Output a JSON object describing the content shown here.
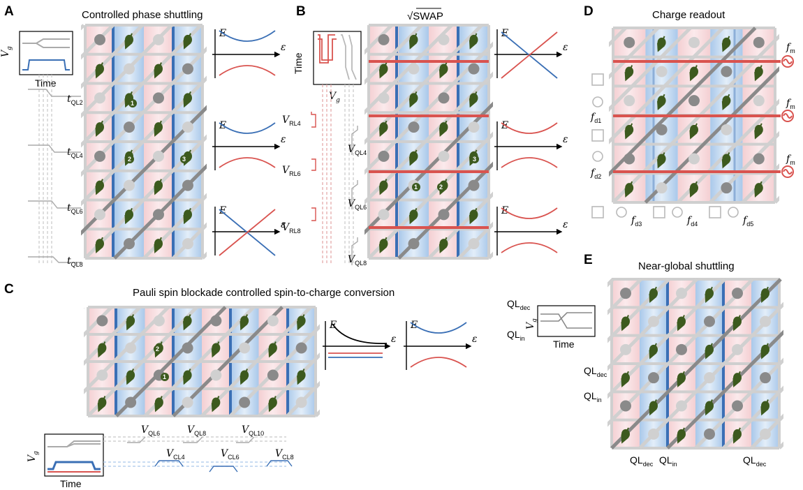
{
  "panels": {
    "A": {
      "letter": "A",
      "title": "Controlled phase shuttling",
      "inset_y": "V",
      "inset_y_sub": "g",
      "inset_x": "Time",
      "gate_labels": [
        {
          "main": "t",
          "sub": "QL2"
        },
        {
          "main": "t",
          "sub": "QL4"
        },
        {
          "main": "t",
          "sub": "QL6"
        },
        {
          "main": "t",
          "sub": "QL8"
        }
      ],
      "markers": [
        "1",
        "2",
        "3"
      ]
    },
    "B": {
      "letter": "B",
      "title": "√SWAP",
      "inset_y": "Time",
      "inset_x": "V",
      "inset_x_sub": "g",
      "red_gates": [
        {
          "main": "V",
          "sub": "RL4"
        },
        {
          "main": "V",
          "sub": "RL6"
        },
        {
          "main": "V",
          "sub": "RL8"
        }
      ],
      "grey_gates": [
        {
          "main": "V",
          "sub": "QL4"
        },
        {
          "main": "V",
          "sub": "QL6"
        },
        {
          "main": "V",
          "sub": "QL8"
        }
      ],
      "markers": [
        "1",
        "2",
        "3"
      ]
    },
    "C": {
      "letter": "C",
      "title": "Pauli spin blockade controlled spin-to-charge conversion",
      "inset_y": "V",
      "inset_y_sub": "g",
      "inset_x": "Time",
      "ql_gates": [
        {
          "main": "V",
          "sub": "QL6"
        },
        {
          "main": "V",
          "sub": "QL8"
        },
        {
          "main": "V",
          "sub": "QL10"
        }
      ],
      "cl_gates": [
        {
          "main": "V",
          "sub": "CL4"
        },
        {
          "main": "V",
          "sub": "CL6"
        },
        {
          "main": "V",
          "sub": "CL8"
        }
      ],
      "markers": [
        "1",
        "2"
      ]
    },
    "D": {
      "letter": "D",
      "title": "Charge readout",
      "fm": {
        "main": "f",
        "sub": "m"
      },
      "fd_left": [
        {
          "main": "f",
          "sub": "d1"
        },
        {
          "main": "f",
          "sub": "d2"
        }
      ],
      "fd_bottom": [
        {
          "main": "f",
          "sub": "d3"
        },
        {
          "main": "f",
          "sub": "d4"
        },
        {
          "main": "f",
          "sub": "d5"
        }
      ]
    },
    "E": {
      "letter": "E",
      "title": "Near-global shuttling",
      "inset_top": {
        "main": "QL",
        "sub": "dec"
      },
      "inset_bottom": {
        "main": "QL",
        "sub": "in"
      },
      "inset_y": "V",
      "inset_y_sub": "g",
      "inset_x": "Time",
      "left_labels": [
        {
          "main": "QL",
          "sub": "dec"
        },
        {
          "main": "QL",
          "sub": "in"
        }
      ],
      "bottom_labels": [
        {
          "main": "QL",
          "sub": "dec"
        },
        {
          "main": "QL",
          "sub": "in"
        },
        {
          "main": "QL",
          "sub": "dec"
        }
      ]
    }
  },
  "axes": {
    "energy": "E",
    "detuning": "ε"
  },
  "colors": {
    "spin": "#3d5a1e",
    "red": "#d9534f",
    "blue": "#3a6fb5",
    "grey": "#b9b9b9",
    "dark_grey": "#8a8a8a"
  }
}
